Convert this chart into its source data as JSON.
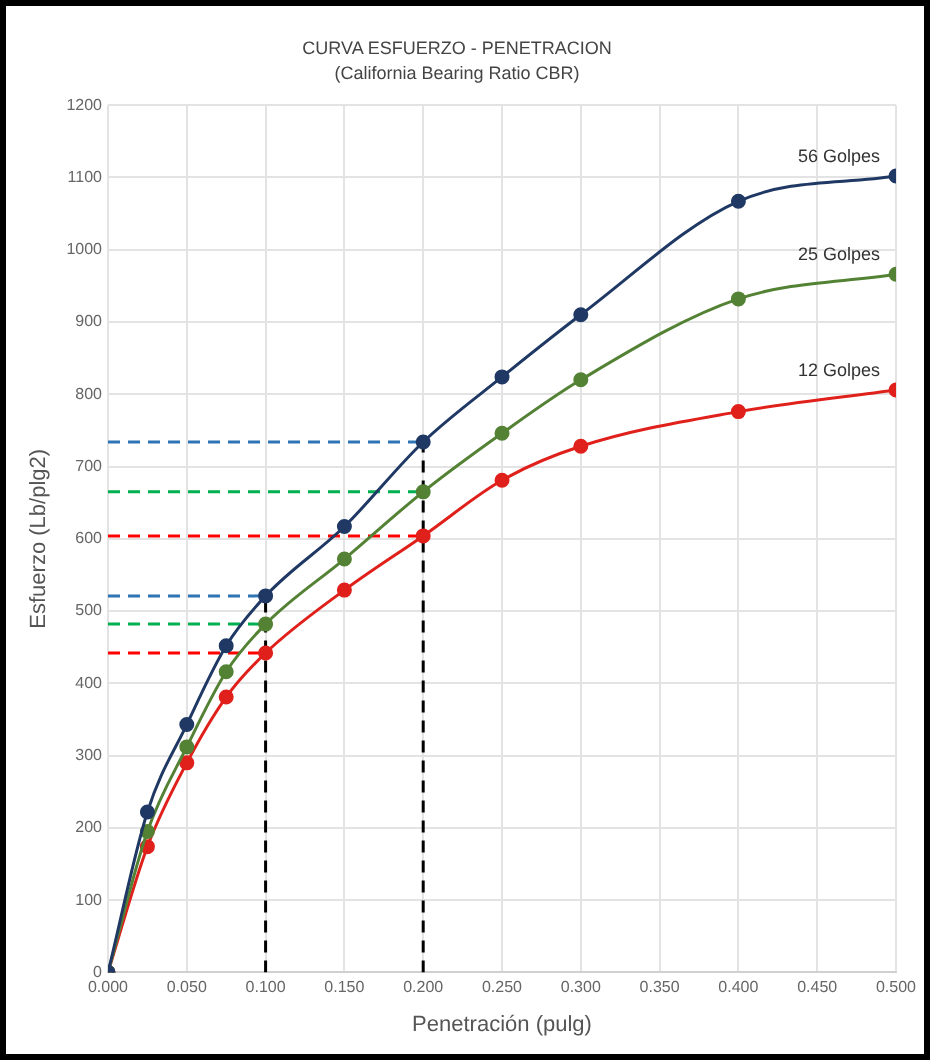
{
  "chart_data": {
    "type": "line",
    "title": "CURVA ESFUERZO - PENETRACION",
    "subtitle": "(California Bearing Ratio CBR)",
    "xlabel": "Penetración (pulg)",
    "ylabel": "Esfuerzo (Lb/plg2)",
    "x": [
      0,
      0.025,
      0.05,
      0.075,
      0.1,
      0.15,
      0.2,
      0.25,
      0.3,
      0.4,
      0.5
    ],
    "series": [
      {
        "name": "56 Golpes",
        "color": "#1f3864",
        "values": [
          0,
          222,
          343,
          452,
          521,
          617,
          734,
          824,
          910,
          1067,
          1102
        ]
      },
      {
        "name": "25 Golpes",
        "color": "#548235",
        "values": [
          0,
          195,
          312,
          416,
          482,
          572,
          665,
          746,
          820,
          932,
          966
        ]
      },
      {
        "name": "12 Golpes",
        "color": "#e0201b",
        "values": [
          0,
          174,
          290,
          381,
          442,
          529,
          604,
          681,
          728,
          776,
          806
        ]
      },
      {
        "color": "#2e75b6",
        "x": [
          0,
          0.2
        ],
        "values": [
          734,
          734
        ],
        "line_style": "dashed",
        "marker": "none"
      },
      {
        "color": "#00b050",
        "x": [
          0,
          0.2
        ],
        "values": [
          665,
          665
        ],
        "line_style": "dashed",
        "marker": "none"
      },
      {
        "color": "#ff0000",
        "x": [
          0,
          0.2
        ],
        "values": [
          604,
          604
        ],
        "line_style": "dashed",
        "marker": "none"
      },
      {
        "color": "#2e75b6",
        "x": [
          0,
          0.1
        ],
        "values": [
          521,
          521
        ],
        "line_style": "dashed",
        "marker": "none"
      },
      {
        "color": "#00b050",
        "x": [
          0,
          0.1
        ],
        "values": [
          482,
          482
        ],
        "line_style": "dashed",
        "marker": "none"
      },
      {
        "color": "#ff0000",
        "x": [
          0,
          0.1
        ],
        "values": [
          442,
          442
        ],
        "line_style": "dashed",
        "marker": "none"
      },
      {
        "color": "#000000",
        "x": [
          0.1,
          0.1
        ],
        "values": [
          0,
          521
        ],
        "line_style": "dashed",
        "marker": "none"
      },
      {
        "color": "#000000",
        "x": [
          0.2,
          0.2
        ],
        "values": [
          0,
          734
        ],
        "line_style": "dashed",
        "marker": "none"
      }
    ],
    "xlim": [
      0,
      0.5
    ],
    "xticks": [
      {
        "value": 0,
        "label": "0.000"
      },
      {
        "value": 0.05,
        "label": "0.050"
      },
      {
        "value": 0.1,
        "label": "0.100"
      },
      {
        "value": 0.15,
        "label": "0.150"
      },
      {
        "value": 0.2,
        "label": "0.200"
      },
      {
        "value": 0.25,
        "label": "0.250"
      },
      {
        "value": 0.3,
        "label": "0.300"
      },
      {
        "value": 0.35,
        "label": "0.350"
      },
      {
        "value": 0.4,
        "label": "0.400"
      },
      {
        "value": 0.45,
        "label": "0.450"
      },
      {
        "value": 0.5,
        "label": "0.500"
      }
    ],
    "ylim": [
      0,
      1200
    ],
    "yticks": [
      0,
      100,
      200,
      300,
      400,
      500,
      600,
      700,
      800,
      900,
      1000,
      1100,
      1200
    ],
    "grid": true,
    "legend": false,
    "marker": "circle",
    "line_style": "solid"
  }
}
